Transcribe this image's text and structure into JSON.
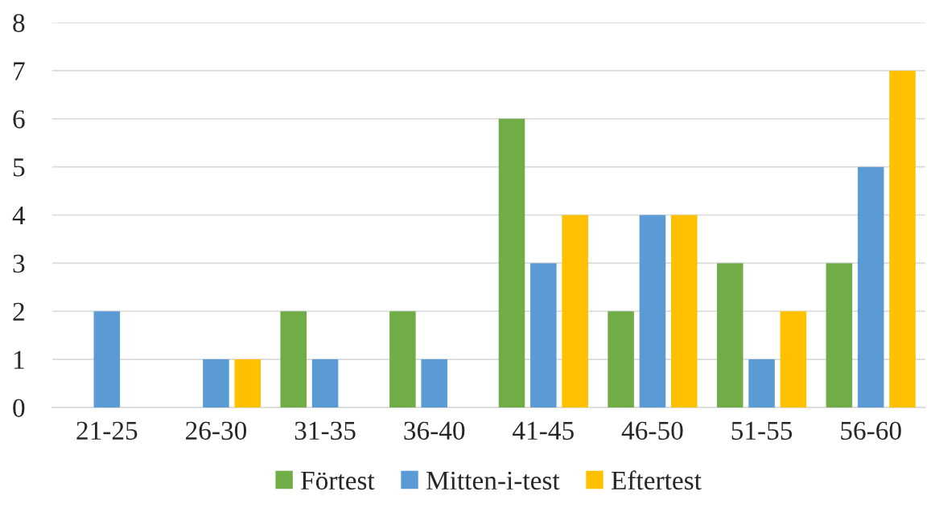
{
  "chart_data": {
    "type": "bar",
    "categories": [
      "21-25",
      "26-30",
      "31-35",
      "36-40",
      "41-45",
      "46-50",
      "51-55",
      "56-60"
    ],
    "series": [
      {
        "name": "Förtest",
        "color": "#70ad47",
        "values": [
          0,
          0,
          2,
          2,
          6,
          2,
          3,
          3
        ]
      },
      {
        "name": "Mitten-i-test",
        "color": "#5b9bd5",
        "values": [
          2,
          1,
          1,
          1,
          3,
          4,
          1,
          5
        ]
      },
      {
        "name": "Eftertest",
        "color": "#ffc000",
        "values": [
          0,
          1,
          0,
          0,
          4,
          4,
          2,
          7
        ]
      }
    ],
    "ylim": [
      0,
      8
    ],
    "yticks": [
      0,
      1,
      2,
      3,
      4,
      5,
      6,
      7,
      8
    ],
    "grid": "y",
    "legend": "bottom"
  }
}
